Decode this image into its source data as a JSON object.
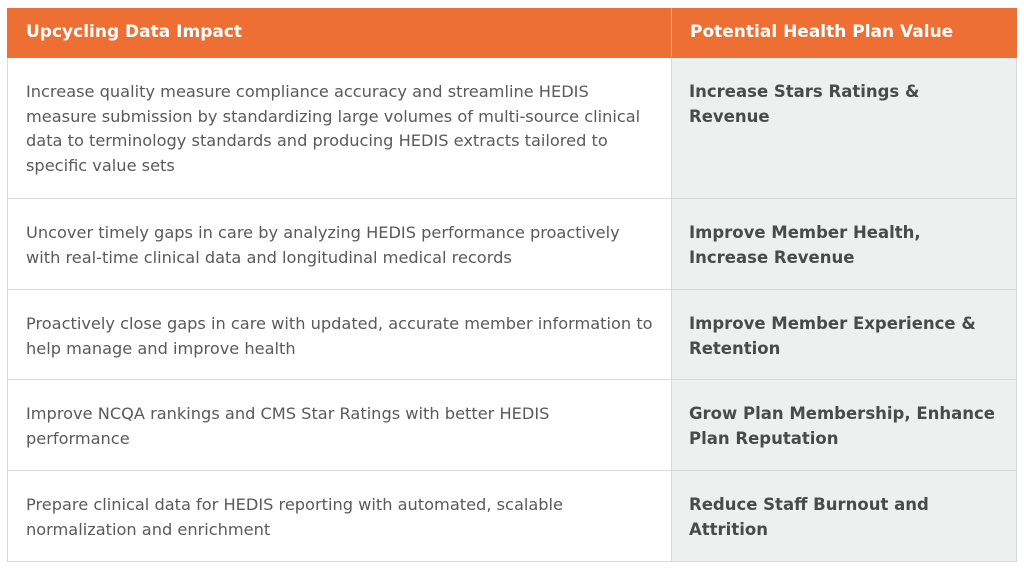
{
  "table": {
    "headers": [
      "Upcycling Data Impact",
      "Potential Health Plan Value"
    ],
    "rows": [
      {
        "impact": "Increase quality measure compliance accuracy and streamline HEDIS measure submission by standardizing large volumes of multi-source clinical data to terminology standards and producing HEDIS extracts tailored to specific value sets",
        "value": "Increase Stars Ratings & Revenue"
      },
      {
        "impact": "Uncover timely gaps in care by analyzing HEDIS performance proactively with real-time clinical data and longitudinal medical records",
        "value": "Improve Member Health, Increase Revenue"
      },
      {
        "impact": "Proactively close gaps in care with updated, accurate member information to help manage and improve health",
        "value": "Improve Member Experience & Retention"
      },
      {
        "impact": "Improve NCQA rankings and CMS Star Ratings with better HEDIS performance",
        "value": "Grow Plan Membership, Enhance Plan Reputation"
      },
      {
        "impact": "Prepare clinical data for HEDIS reporting with automated, scalable normalization and enrichment",
        "value": "Reduce Staff Burnout and Attrition"
      }
    ]
  },
  "colors": {
    "header_bg": "#ee6f33",
    "value_bg": "#eef0f0",
    "border": "#d9d9d9"
  }
}
